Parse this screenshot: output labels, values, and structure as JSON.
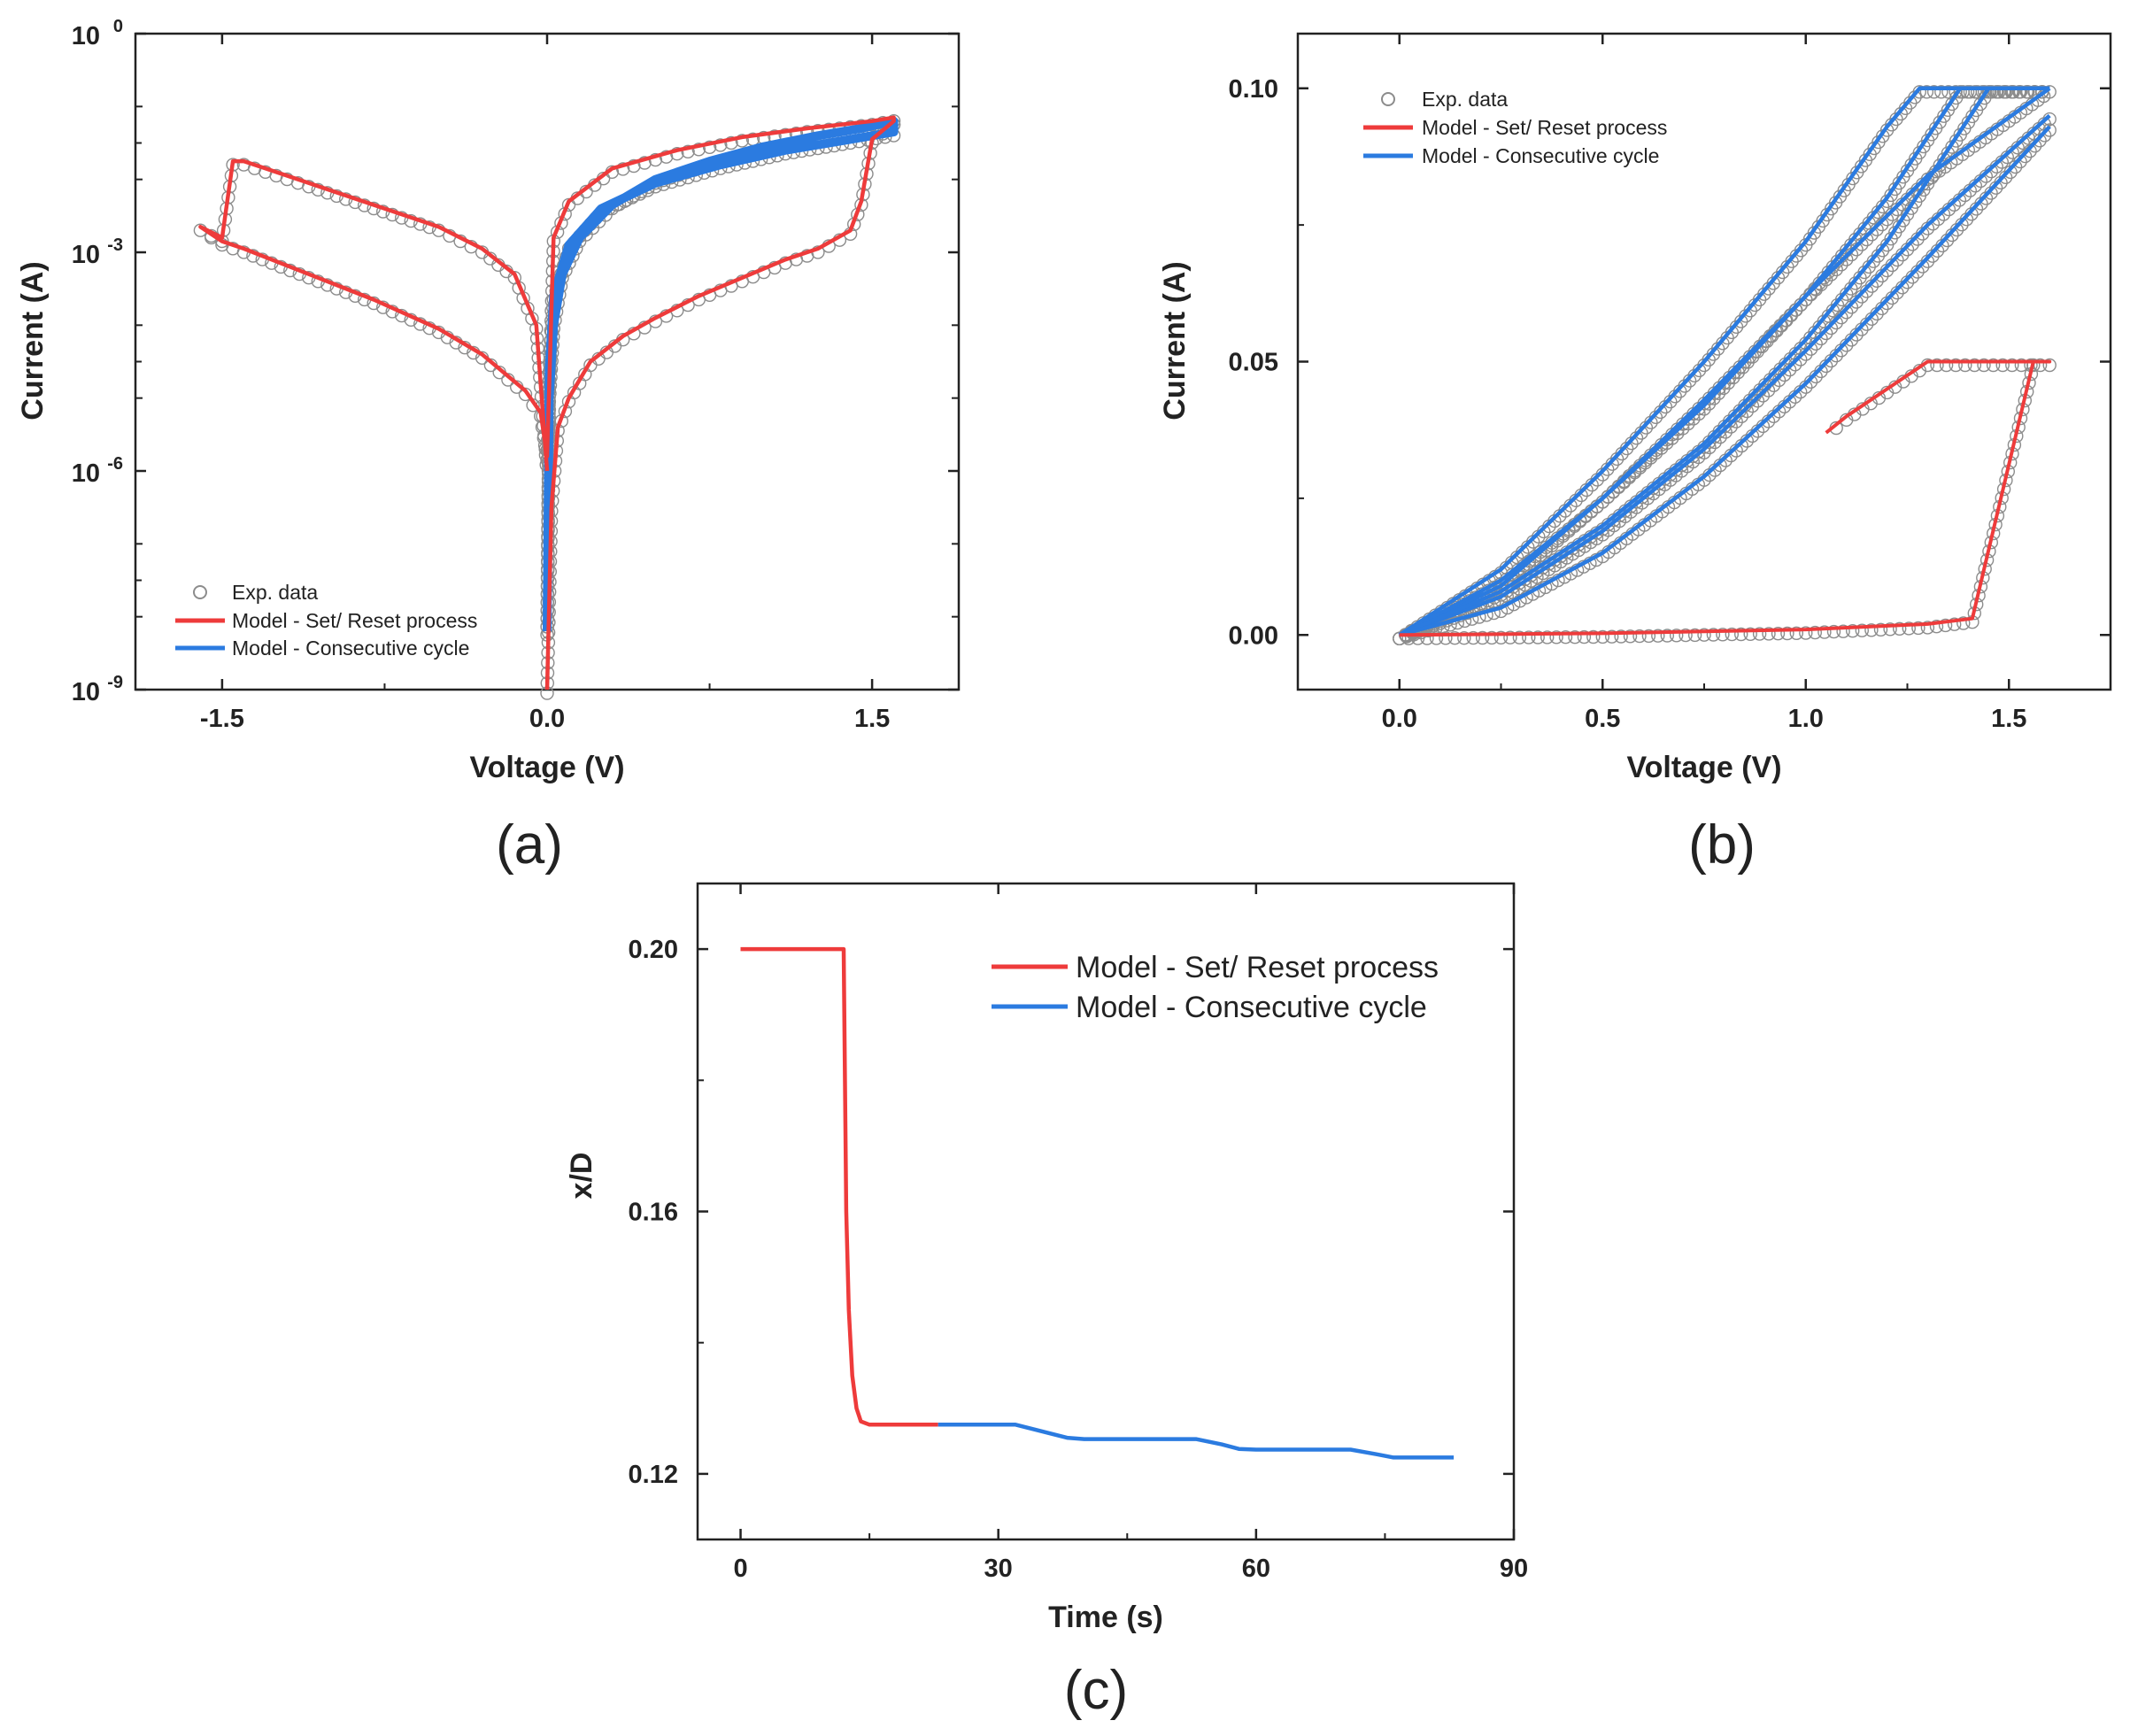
{
  "figure": {
    "panel_labels": [
      "(a)",
      "(b)",
      "(c)"
    ]
  },
  "colors": {
    "exp": "#8c8c8c",
    "set_reset": "#ee3b3b",
    "consecutive": "#2b7be0",
    "axis": "#222222"
  },
  "chart_data": [
    {
      "id": "a",
      "type": "line",
      "title": "",
      "xlabel": "Voltage (V)",
      "ylabel": "Current (A)",
      "yscale": "log",
      "xlim": [
        -1.9,
        1.9
      ],
      "ylim_exp": [
        -9,
        0
      ],
      "xticks": [
        -1.5,
        0.0,
        1.5
      ],
      "xtick_labels": [
        "-1.5",
        "0.0",
        "1.5"
      ],
      "yticks_exp": [
        -9,
        -6,
        -3,
        0
      ],
      "ytick_base": "10",
      "ytick_exponents": [
        "-9",
        "-6",
        "-3",
        "0"
      ],
      "legend": [
        {
          "label": "Exp. data",
          "kind": "marker"
        },
        {
          "label": "Model - Set/ Reset process",
          "kind": "line",
          "color": "#ee3b3b"
        },
        {
          "label": "Model - Consecutive cycle",
          "kind": "line",
          "color": "#2b7be0"
        }
      ],
      "series": [
        {
          "name": "Model - Set/ Reset process",
          "color": "#ee3b3b",
          "x": [
            0,
            0.02,
            0.05,
            0.1,
            0.2,
            0.35,
            0.5,
            0.7,
            0.9,
            1.1,
            1.25,
            1.4,
            1.45,
            1.5,
            1.6,
            1.6,
            1.5,
            1.2,
            0.9,
            0.6,
            0.3,
            0.1,
            0.03,
            0.0,
            -0.03,
            -0.1,
            -0.3,
            -0.5,
            -0.8,
            -1.1,
            -1.4,
            -1.5,
            -1.6,
            -1.5,
            -1.45,
            -1.4,
            -1.3,
            -1.1,
            -0.8,
            -0.5,
            -0.3,
            -0.15,
            -0.05,
            0
          ],
          "y_exp": [
            -9,
            -6.5,
            -5.4,
            -5.0,
            -4.5,
            -4.15,
            -3.9,
            -3.6,
            -3.35,
            -3.1,
            -2.95,
            -2.7,
            -2.3,
            -1.45,
            -1.2,
            -1.15,
            -1.2,
            -1.3,
            -1.42,
            -1.6,
            -1.85,
            -2.3,
            -2.8,
            -5.8,
            -5.2,
            -4.9,
            -4.4,
            -4.05,
            -3.65,
            -3.3,
            -2.95,
            -2.85,
            -2.65,
            -2.8,
            -1.75,
            -1.75,
            -1.85,
            -2.05,
            -2.35,
            -2.65,
            -2.95,
            -3.3,
            -4.0,
            -6
          ]
        },
        {
          "name": "Model - Consecutive cycle",
          "color": "#2b7be0",
          "x": [
            0,
            0.01,
            0.03,
            0.07,
            0.15,
            0.3,
            0.5,
            0.75,
            1.0,
            1.25,
            1.45,
            1.6,
            1.6,
            1.4,
            1.1,
            0.8,
            0.5,
            0.25,
            0.1,
            0.03,
            0.01,
            0
          ],
          "y_exp": [
            -8.2,
            -5.0,
            -4.0,
            -3.3,
            -2.8,
            -2.35,
            -2.0,
            -1.75,
            -1.55,
            -1.4,
            -1.3,
            -1.2,
            -1.35,
            -1.45,
            -1.6,
            -1.8,
            -2.05,
            -2.4,
            -2.9,
            -3.6,
            -4.6,
            -8.2
          ]
        }
      ]
    },
    {
      "id": "b",
      "type": "line",
      "title": "",
      "xlabel": "Voltage (V)",
      "ylabel": "Current (A)",
      "xlim": [
        -0.25,
        1.75
      ],
      "ylim": [
        -0.01,
        0.11
      ],
      "xticks": [
        0.0,
        0.5,
        1.0,
        1.5
      ],
      "xtick_labels": [
        "0.0",
        "0.5",
        "1.0",
        "1.5"
      ],
      "yticks": [
        0.0,
        0.05,
        0.1
      ],
      "ytick_labels": [
        "0.00",
        "0.05",
        "0.10"
      ],
      "legend": [
        {
          "label": "Exp. data",
          "kind": "marker"
        },
        {
          "label": "Model - Set/ Reset process",
          "kind": "line",
          "color": "#ee3b3b"
        },
        {
          "label": "Model - Consecutive cycle",
          "kind": "line",
          "color": "#2b7be0"
        }
      ],
      "series": [
        {
          "name": "Model - Set/ Reset process",
          "color": "#ee3b3b",
          "x": [
            0.0,
            0.5,
            1.0,
            1.3,
            1.41,
            1.56,
            1.6,
            1.3,
            1.2,
            1.1,
            1.05
          ],
          "y": [
            0.0,
            0.0003,
            0.001,
            0.002,
            0.003,
            0.05,
            0.05,
            0.05,
            0.045,
            0.04,
            0.037
          ]
        },
        {
          "name": "Model - Consecutive cycle",
          "color": "#2b7be0",
          "loops": [
            {
              "x": [
                0.0,
                0.25,
                0.5,
                0.75,
                1.0,
                1.2,
                1.28,
                1.6
              ],
              "y": [
                0.0,
                0.012,
                0.03,
                0.05,
                0.072,
                0.093,
                0.1,
                0.1
              ]
            },
            {
              "x": [
                1.6,
                1.3,
                1.0,
                0.75,
                0.5,
                0.25,
                0.0
              ],
              "y": [
                0.1,
                0.084,
                0.062,
                0.043,
                0.025,
                0.009,
                0.0
              ]
            },
            {
              "x": [
                0.0,
                0.25,
                0.5,
                0.75,
                1.0,
                1.2,
                1.38,
                1.6
              ],
              "y": [
                0.0,
                0.01,
                0.025,
                0.042,
                0.062,
                0.08,
                0.1,
                0.1
              ]
            },
            {
              "x": [
                1.6,
                1.3,
                1.0,
                0.75,
                0.5,
                0.25,
                0.0
              ],
              "y": [
                0.095,
                0.075,
                0.052,
                0.034,
                0.019,
                0.007,
                0.0
              ]
            },
            {
              "x": [
                0.0,
                0.25,
                0.5,
                0.75,
                1.0,
                1.2,
                1.45,
                1.6
              ],
              "y": [
                0.0,
                0.008,
                0.02,
                0.035,
                0.054,
                0.072,
                0.1,
                0.1
              ]
            },
            {
              "x": [
                1.6,
                1.3,
                1.0,
                0.75,
                0.5,
                0.25,
                0.0
              ],
              "y": [
                0.093,
                0.069,
                0.046,
                0.029,
                0.015,
                0.005,
                0.0
              ]
            }
          ]
        }
      ]
    },
    {
      "id": "c",
      "type": "line",
      "title": "",
      "xlabel": "Time (s)",
      "ylabel": "x/D",
      "xlim": [
        -5,
        90
      ],
      "ylim": [
        0.11,
        0.21
      ],
      "xticks": [
        0,
        30,
        60,
        90
      ],
      "xtick_labels": [
        "0",
        "30",
        "60",
        "90"
      ],
      "yticks": [
        0.12,
        0.16,
        0.2
      ],
      "ytick_labels": [
        "0.12",
        "0.16",
        "0.20"
      ],
      "legend": [
        {
          "label": "Model - Set/ Reset process",
          "kind": "line",
          "color": "#ee3b3b"
        },
        {
          "label": "Model - Consecutive cycle",
          "kind": "line",
          "color": "#2b7be0"
        }
      ],
      "series": [
        {
          "name": "Model - Set/ Reset process",
          "color": "#ee3b3b",
          "x": [
            0,
            12,
            12.3,
            12.6,
            13.0,
            13.5,
            14.0,
            15,
            18,
            23
          ],
          "y": [
            0.2,
            0.2,
            0.16,
            0.145,
            0.135,
            0.13,
            0.128,
            0.1275,
            0.1275,
            0.1275
          ]
        },
        {
          "name": "Model - Consecutive cycle",
          "color": "#2b7be0",
          "x": [
            23,
            32,
            35,
            38,
            40,
            53,
            56,
            58,
            60,
            71,
            74,
            76,
            83
          ],
          "y": [
            0.1275,
            0.1275,
            0.1265,
            0.1255,
            0.1253,
            0.1253,
            0.1245,
            0.1238,
            0.1237,
            0.1237,
            0.123,
            0.1225,
            0.1225
          ]
        }
      ]
    }
  ]
}
